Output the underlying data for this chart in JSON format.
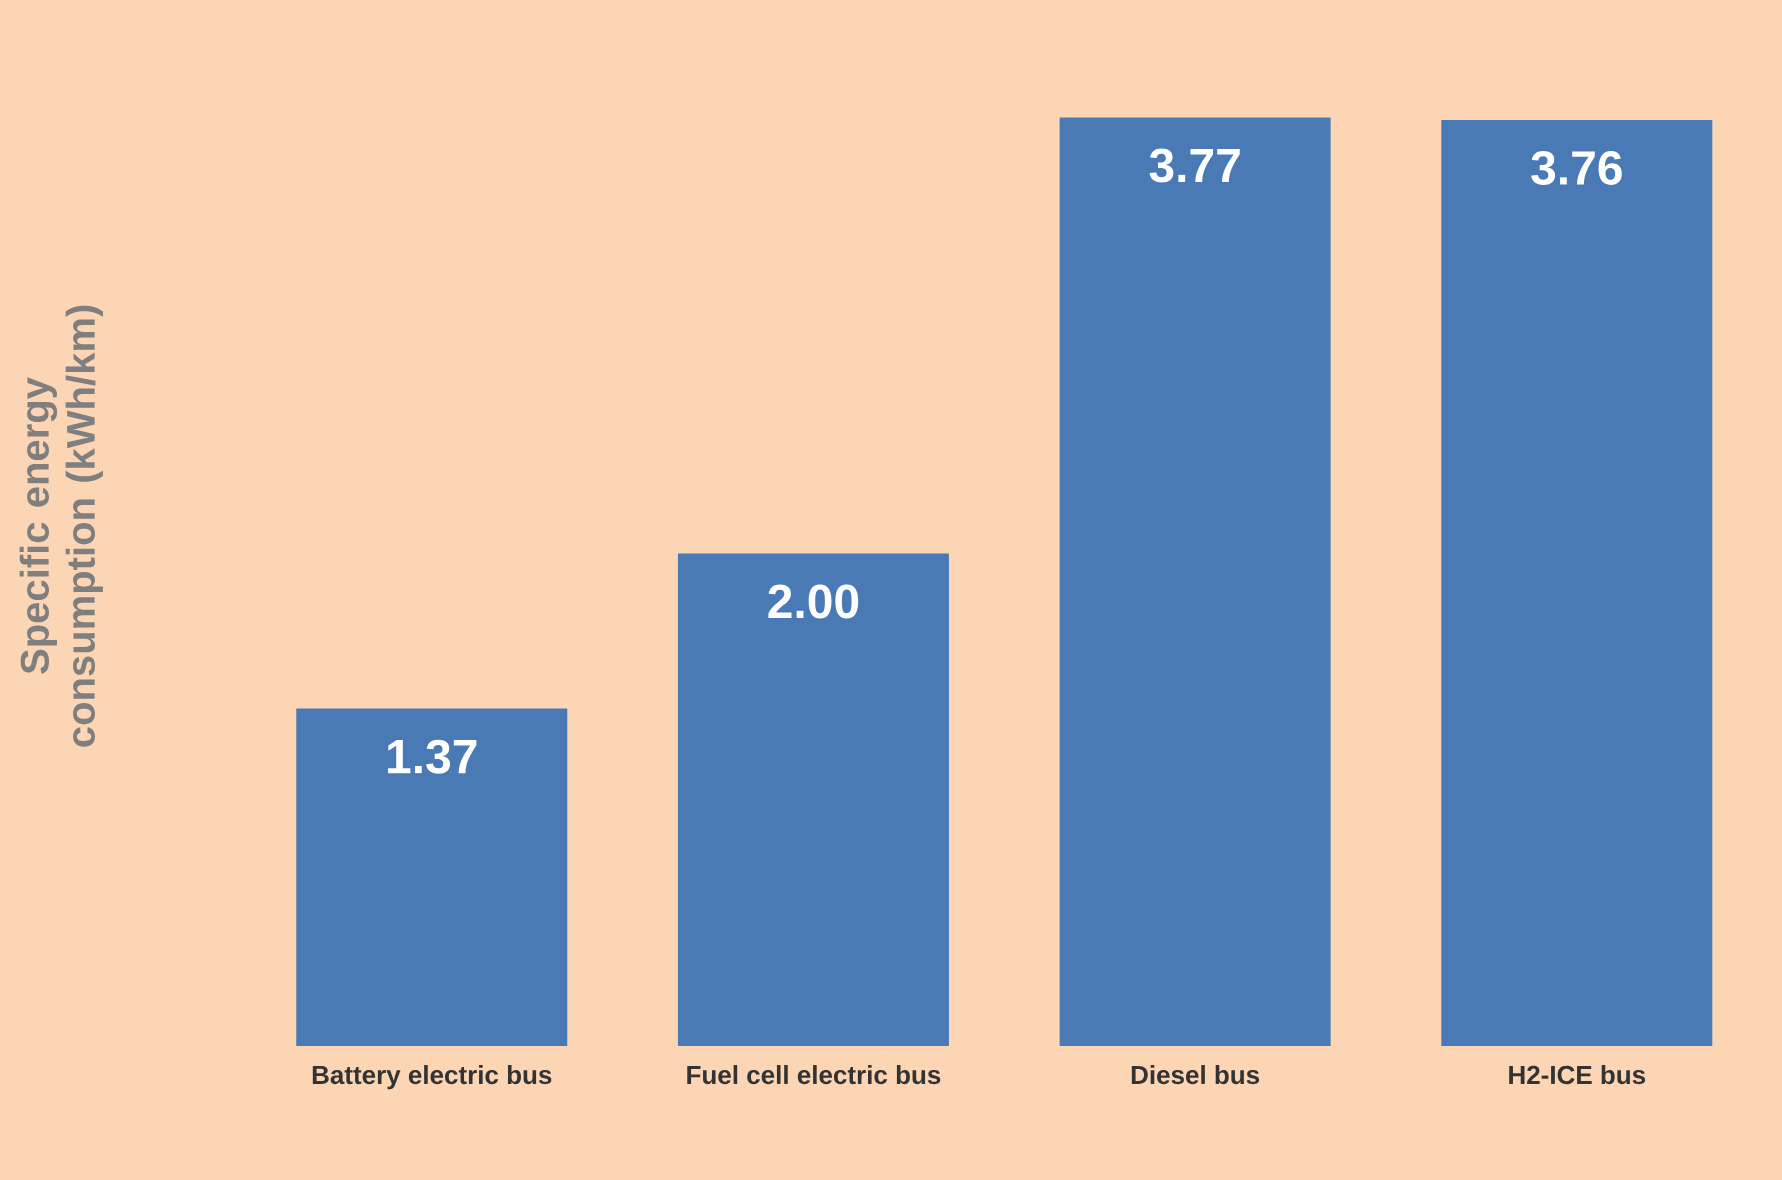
{
  "chart_data": {
    "type": "bar",
    "ylabel": "Specific energy consumption (kWh/km)",
    "categories": [
      "Battery electric bus",
      "Fuel cell electric bus",
      "Diesel bus",
      "H2-ICE bus"
    ],
    "values": [
      1.37,
      2.0,
      3.77,
      3.76
    ],
    "value_labels": [
      "1.37",
      "2.00",
      "3.77",
      "3.76"
    ],
    "color": "#4a7ab5"
  }
}
